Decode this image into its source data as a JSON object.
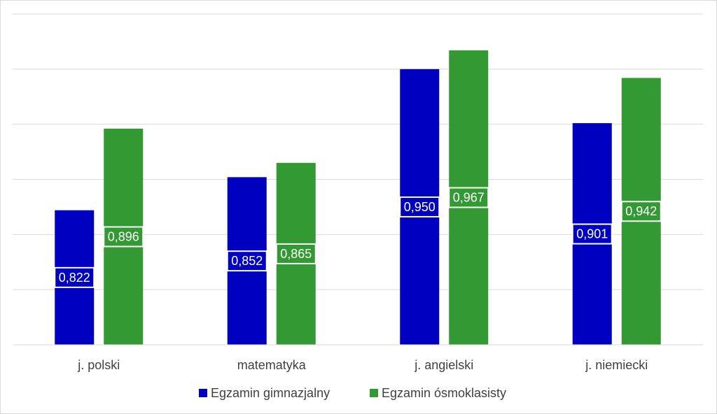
{
  "chart_data": {
    "type": "bar",
    "categories": [
      "j. polski",
      "matematyka",
      "j. angielski",
      "j. niemiecki"
    ],
    "series": [
      {
        "name": "Egzamin gimnazjalny",
        "values": [
          0.822,
          0.852,
          0.95,
          0.901
        ],
        "labels": [
          "0,822",
          "0,852",
          "0,950",
          "0,901"
        ],
        "color": "#0000c0"
      },
      {
        "name": "Egzamin ósmoklasisty",
        "values": [
          0.896,
          0.865,
          0.967,
          0.942
        ],
        "labels": [
          "0,896",
          "0,865",
          "0,967",
          "0,942"
        ],
        "color": "#339933"
      }
    ],
    "ylim": [
      0.7,
      1.0
    ],
    "gridlines": [
      0.75,
      0.8,
      0.85,
      0.9,
      0.95,
      1.0
    ],
    "grid": true,
    "legend_position": "bottom",
    "gridline_color": "#d9d9d9"
  }
}
